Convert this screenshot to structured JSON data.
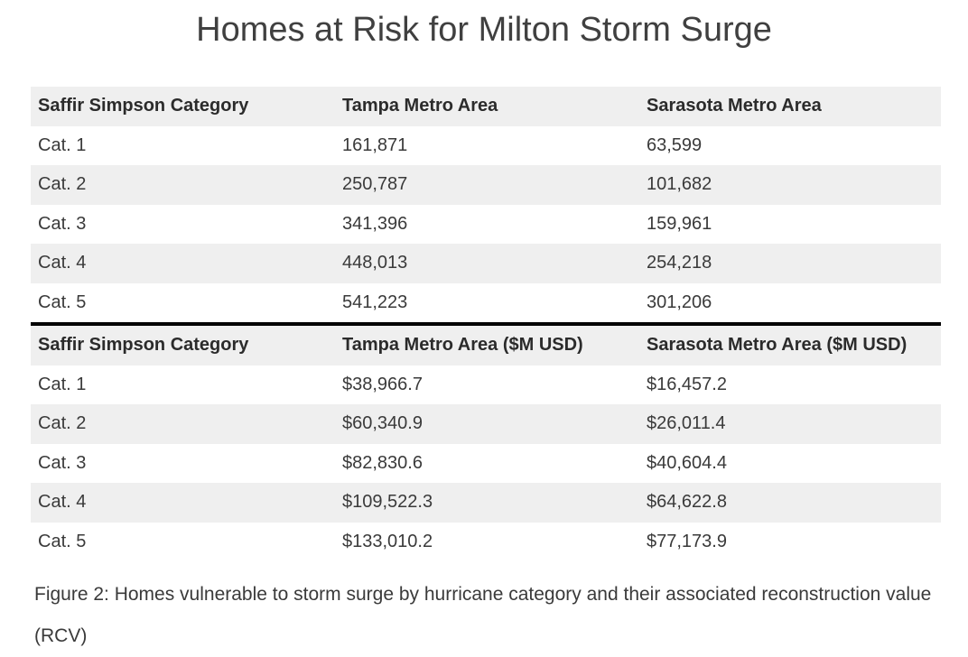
{
  "title": "Homes at Risk for Milton Storm Surge",
  "colors": {
    "header_bg": "#efefef",
    "divider": "#000000",
    "text": "#333333"
  },
  "chart_data": [
    {
      "type": "table",
      "columns": [
        "Saffir Simpson Category",
        "Tampa Metro Area",
        "Sarasota Metro Area"
      ],
      "rows": [
        [
          "Cat. 1",
          "161,871",
          "63,599"
        ],
        [
          "Cat. 2",
          "250,787",
          "101,682"
        ],
        [
          "Cat. 3",
          "341,396",
          "159,961"
        ],
        [
          "Cat. 4",
          "448,013",
          "254,218"
        ],
        [
          "Cat. 5",
          "541,223",
          "301,206"
        ]
      ]
    },
    {
      "type": "table",
      "columns": [
        "Saffir Simpson Category",
        "Tampa Metro Area ($M USD)",
        "Sarasota Metro Area ($M USD)"
      ],
      "rows": [
        [
          "Cat. 1",
          "$38,966.7",
          "$16,457.2"
        ],
        [
          "Cat. 2",
          "$60,340.9",
          "$26,011.4"
        ],
        [
          "Cat. 3",
          "$82,830.6",
          "$40,604.4"
        ],
        [
          "Cat. 4",
          "$109,522.3",
          "$64,622.8"
        ],
        [
          "Cat. 5",
          "$133,010.2",
          "$77,173.9"
        ]
      ]
    }
  ],
  "caption": "Figure 2: Homes vulnerable to storm surge by hurricane category and their associated reconstruction value (RCV)"
}
